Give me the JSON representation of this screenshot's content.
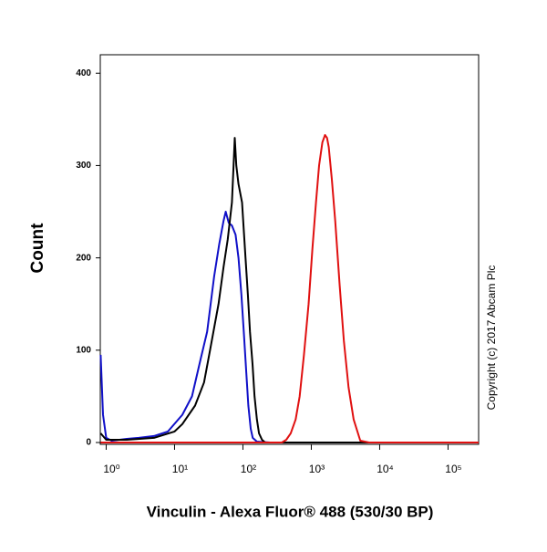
{
  "chart_data": {
    "type": "line",
    "xlabel": "Vinculin - Alexa Fluor® 488 (530/30 BP)",
    "ylabel": "Count",
    "annotation": "Copyright (c) 2017 Abcam Plc",
    "xscale": "log",
    "xlim": [
      0.82,
      280000
    ],
    "ylim": [
      0,
      420
    ],
    "xticks": [
      {
        "value": 1,
        "label": "10⁰"
      },
      {
        "value": 10,
        "label": "10¹"
      },
      {
        "value": 100,
        "label": "10²"
      },
      {
        "value": 1000,
        "label": "10³"
      },
      {
        "value": 10000,
        "label": "10⁴"
      },
      {
        "value": 100000,
        "label": "10⁵"
      }
    ],
    "yticks": [
      0,
      100,
      200,
      300,
      400
    ],
    "series": [
      {
        "name": "Blue",
        "color": "#1010c8",
        "x": [
          0.83,
          0.9,
          1,
          1.2,
          2,
          3,
          5,
          8,
          13,
          18,
          24,
          30,
          38,
          45,
          52,
          56,
          62,
          69,
          78,
          86,
          95,
          103,
          112,
          120,
          130,
          139,
          160,
          250,
          280000
        ],
        "values": [
          95,
          30,
          5,
          2,
          4,
          5,
          7,
          12,
          30,
          50,
          90,
          120,
          180,
          215,
          240,
          250,
          238,
          235,
          225,
          200,
          160,
          120,
          75,
          40,
          15,
          5,
          1,
          0,
          0
        ]
      },
      {
        "name": "Black",
        "color": "#000000",
        "x": [
          0.83,
          1,
          2,
          5,
          10,
          13,
          20,
          27,
          33,
          44,
          52,
          60,
          69,
          73,
          76,
          80,
          86,
          97,
          109,
          118,
          127,
          138,
          148,
          160,
          172,
          190,
          212,
          300,
          280000
        ],
        "values": [
          10,
          3,
          3,
          5,
          12,
          20,
          40,
          65,
          100,
          150,
          190,
          220,
          260,
          300,
          330,
          300,
          280,
          260,
          200,
          160,
          120,
          85,
          50,
          25,
          10,
          3,
          0,
          0,
          0
        ]
      },
      {
        "name": "Red",
        "color": "#e01010",
        "x": [
          0.83,
          300,
          370,
          430,
          500,
          590,
          676,
          780,
          912,
          1040,
          1170,
          1300,
          1450,
          1585,
          1700,
          1800,
          2000,
          2240,
          2600,
          3000,
          3500,
          4160,
          5200,
          7000,
          280000
        ],
        "values": [
          0,
          0,
          0,
          3,
          10,
          25,
          50,
          95,
          150,
          210,
          260,
          300,
          325,
          333,
          330,
          320,
          285,
          240,
          170,
          110,
          60,
          25,
          2,
          0,
          0
        ]
      }
    ]
  }
}
